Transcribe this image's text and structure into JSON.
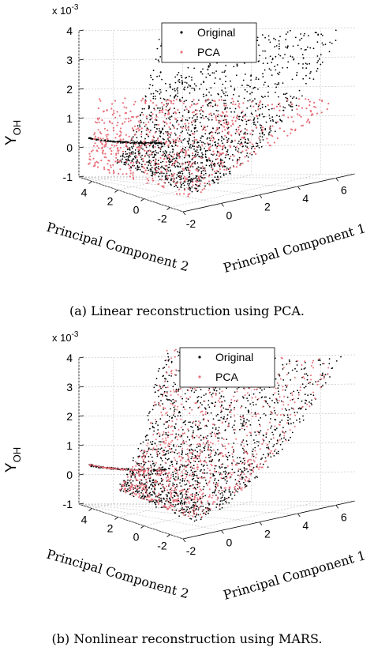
{
  "chart_data": [
    {
      "type": "scatter",
      "subtype": "3d-scatter",
      "caption": "(a) Linear reconstruction using PCA.",
      "exponent_label": "x 10",
      "exponent_power": "-3",
      "zlabel": "Y",
      "zlabel_sub": "OH",
      "xlabel": "Principal Component 1",
      "ylabel": "Principal Component 2",
      "z_ticks": [
        "4",
        "3",
        "2",
        "1",
        "0",
        "-1"
      ],
      "x_ticks": [
        "-2",
        "0",
        "2",
        "4",
        "6"
      ],
      "y_ticks": [
        "4",
        "2",
        "0",
        "-2"
      ],
      "zlim": [
        -1,
        4
      ],
      "xlim": [
        -2,
        7
      ],
      "ylim": [
        -3,
        5
      ],
      "grid": true,
      "legend_position": "top-center",
      "series": [
        {
          "name": "Original",
          "color": "#000000",
          "marker": "dot",
          "shape": "curved manifold rising from about 0 to 3.6 with a branch at about 0.6"
        },
        {
          "name": "PCA",
          "color": "#e8707a",
          "marker": "dot",
          "shape": "planar linear reconstruction from about -0.6 to 1.9"
        }
      ]
    },
    {
      "type": "scatter",
      "subtype": "3d-scatter",
      "caption": "(b) Nonlinear reconstruction using MARS.",
      "exponent_label": "x 10",
      "exponent_power": "-3",
      "zlabel": "Y",
      "zlabel_sub": "OH",
      "xlabel": "Principal Component 1",
      "ylabel": "Principal Component 2",
      "z_ticks": [
        "4",
        "3",
        "2",
        "1",
        "0",
        "-1"
      ],
      "x_ticks": [
        "-2",
        "0",
        "2",
        "4",
        "6"
      ],
      "y_ticks": [
        "4",
        "2",
        "0",
        "-2"
      ],
      "zlim": [
        -1,
        4
      ],
      "xlim": [
        -2,
        7
      ],
      "ylim": [
        -3,
        5
      ],
      "grid": true,
      "legend_position": "top-center",
      "series": [
        {
          "name": "Original",
          "color": "#000000",
          "marker": "dot",
          "shape": "curved manifold rising from about 0 to 3.6 with a branch at about 0.6"
        },
        {
          "name": "PCA",
          "color": "#e8707a",
          "marker": "dot",
          "shape": "nonlinear reconstruction overlaying the curved manifold"
        }
      ]
    }
  ]
}
